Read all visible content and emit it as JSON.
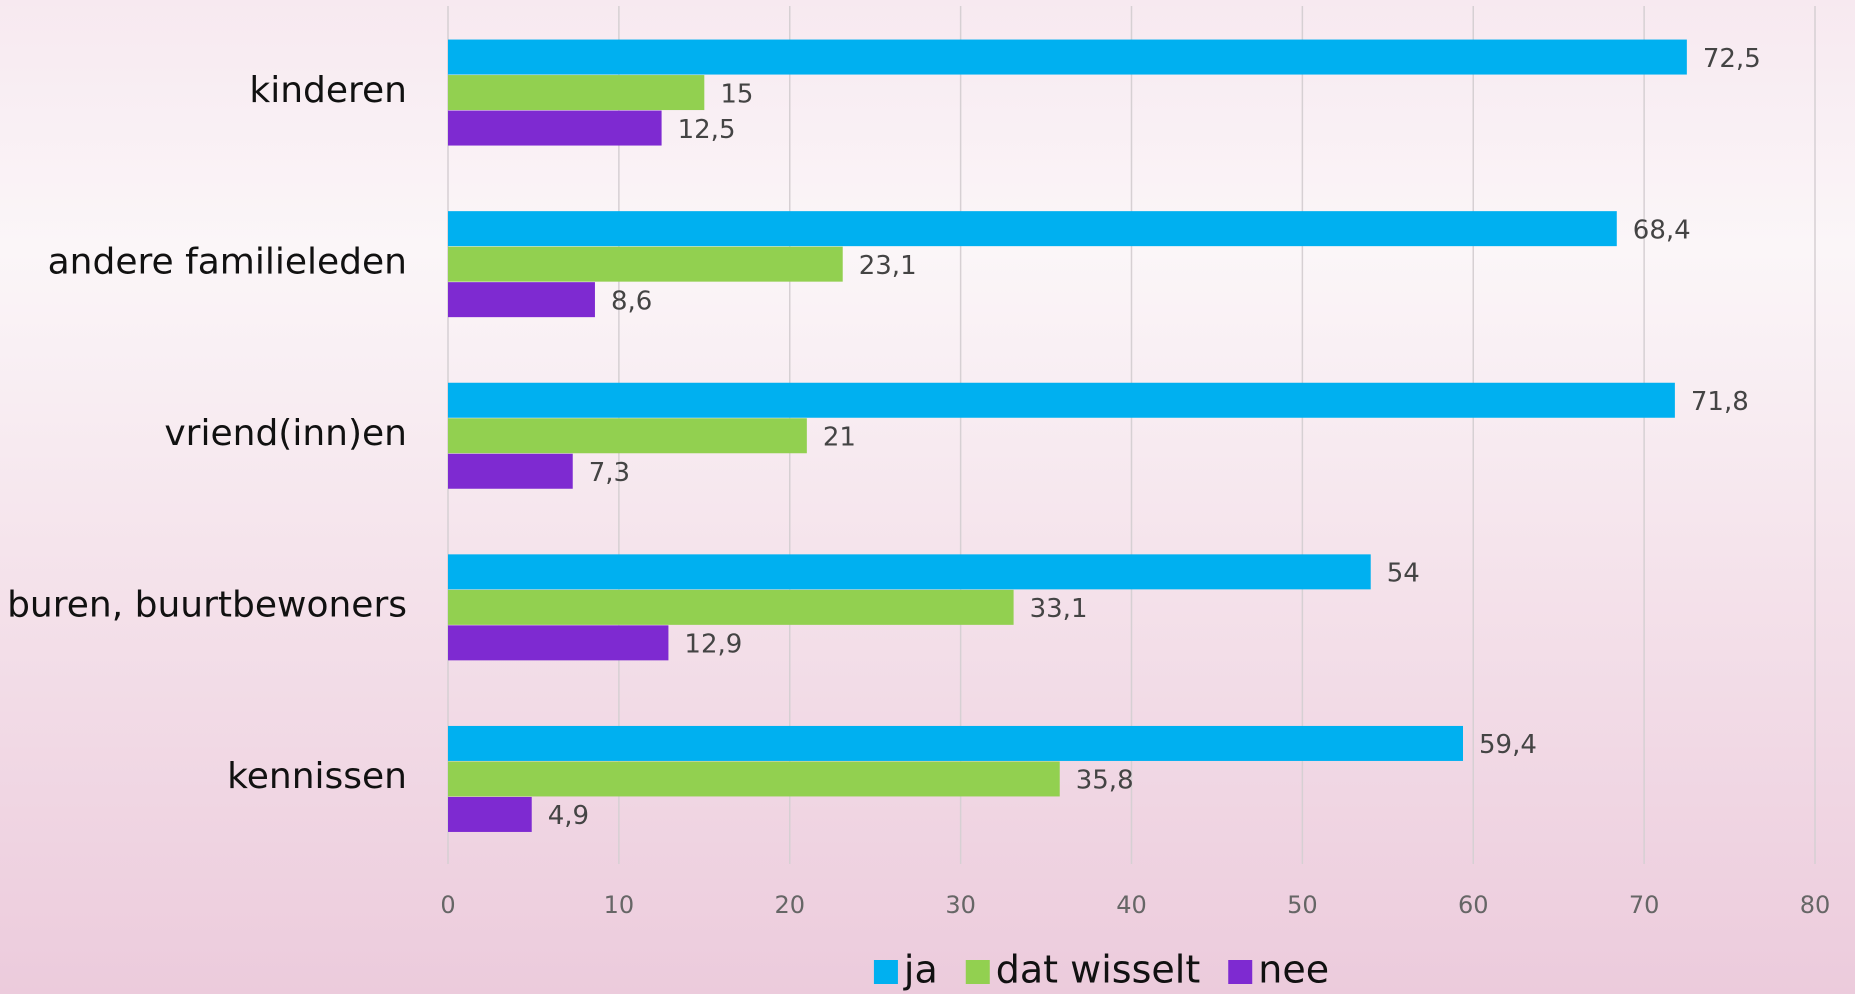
{
  "chart_data": {
    "type": "hbar",
    "categories": [
      "kinderen",
      "andere familieleden",
      "vriend(inn)en",
      "buren, buurtbewoners",
      "kennissen"
    ],
    "series": [
      {
        "name": "ja",
        "color": "#00b0f0",
        "values": [
          72.5,
          68.4,
          71.8,
          54,
          59.4
        ],
        "value_labels": [
          "72,5",
          "68,4",
          "71,8",
          "54",
          "59,4"
        ]
      },
      {
        "name": "dat wisselt",
        "color": "#92d050",
        "values": [
          15,
          23.1,
          21,
          33.1,
          35.8
        ],
        "value_labels": [
          "15",
          "23,1",
          "21",
          "33,1",
          "35,8"
        ]
      },
      {
        "name": "nee",
        "color": "#7e2ad1",
        "values": [
          12.5,
          8.6,
          7.3,
          12.9,
          4.9
        ],
        "value_labels": [
          "12,5",
          "8,6",
          "7,3",
          "12,9",
          "4,9"
        ]
      }
    ],
    "xlim": [
      0,
      80
    ],
    "xticks": [
      0,
      10,
      20,
      30,
      40,
      50,
      60,
      70,
      80
    ],
    "grid": true,
    "legend": "bottom"
  }
}
